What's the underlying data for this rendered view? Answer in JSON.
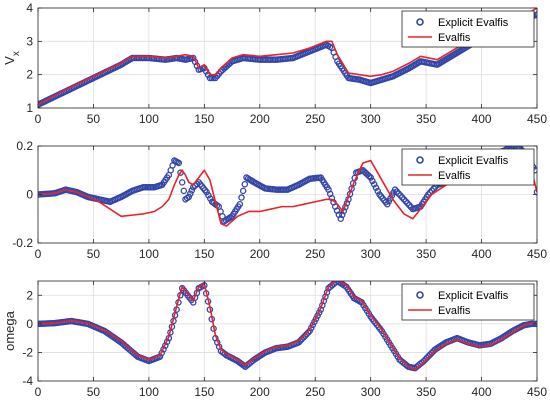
{
  "chart_data": [
    {
      "type": "line",
      "ylabel": "V",
      "ylabel_sub": "x",
      "xlim": [
        0,
        450
      ],
      "ylim": [
        1,
        4
      ],
      "xticks": [
        "0",
        "50",
        "100",
        "150",
        "200",
        "250",
        "300",
        "350",
        "400",
        "450"
      ],
      "yticks": [
        "1",
        "2",
        "3",
        "4"
      ],
      "grid": true,
      "legend_position": "top-right",
      "series": [
        {
          "name": "Explicit Evalfis",
          "style": "circles",
          "color": "#3346a8",
          "x": [
            0,
            25,
            50,
            75,
            85,
            100,
            115,
            125,
            133,
            140,
            145,
            150,
            155,
            160,
            165,
            175,
            185,
            200,
            215,
            230,
            245,
            260,
            265,
            270,
            280,
            290,
            300,
            310,
            320,
            335,
            345,
            360,
            375,
            390,
            410,
            430,
            445,
            450
          ],
          "y": [
            1.1,
            1.5,
            1.9,
            2.3,
            2.5,
            2.5,
            2.45,
            2.5,
            2.45,
            2.5,
            2.15,
            2.2,
            1.9,
            1.9,
            2.1,
            2.4,
            2.5,
            2.45,
            2.45,
            2.5,
            2.7,
            2.9,
            2.8,
            2.4,
            1.9,
            1.85,
            1.75,
            1.85,
            1.95,
            2.2,
            2.4,
            2.3,
            2.6,
            2.9,
            3.2,
            3.5,
            3.75,
            3.8
          ]
        },
        {
          "name": "Evalfis",
          "style": "line",
          "color": "#e8242a",
          "x": [
            0,
            25,
            50,
            75,
            85,
            100,
            115,
            125,
            133,
            140,
            145,
            150,
            155,
            160,
            165,
            175,
            185,
            200,
            215,
            230,
            245,
            260,
            265,
            270,
            280,
            290,
            300,
            310,
            320,
            335,
            345,
            360,
            375,
            390,
            410,
            430,
            445,
            450
          ],
          "y": [
            1.1,
            1.55,
            1.95,
            2.35,
            2.55,
            2.55,
            2.5,
            2.55,
            2.6,
            2.55,
            2.2,
            2.3,
            2.0,
            2.0,
            2.2,
            2.5,
            2.6,
            2.55,
            2.6,
            2.65,
            2.8,
            3.0,
            3.0,
            2.6,
            2.05,
            2.0,
            1.95,
            2.0,
            2.1,
            2.35,
            2.55,
            2.45,
            2.75,
            3.05,
            3.35,
            3.65,
            3.9,
            4.0
          ]
        }
      ]
    },
    {
      "type": "line",
      "ylabel": "",
      "xlim": [
        0,
        450
      ],
      "ylim": [
        -0.2,
        0.2
      ],
      "xticks": [
        "0",
        "50",
        "100",
        "150",
        "200",
        "250",
        "300",
        "350",
        "400",
        "450"
      ],
      "yticks": [
        "-0.2",
        "0",
        "0.2"
      ],
      "grid": true,
      "legend_position": "top-right",
      "series": [
        {
          "name": "Explicit Evalfis",
          "style": "circles",
          "color": "#3346a8",
          "x": [
            0,
            15,
            25,
            35,
            45,
            55,
            65,
            75,
            85,
            95,
            105,
            112,
            118,
            123,
            127,
            130,
            133,
            136,
            140,
            145,
            152,
            157,
            163,
            168,
            175,
            182,
            188,
            195,
            205,
            215,
            225,
            235,
            245,
            255,
            262,
            268,
            273,
            280,
            287,
            293,
            300,
            308,
            315,
            322,
            330,
            338,
            345,
            352,
            360,
            368,
            375,
            382,
            390,
            398,
            405,
            412,
            420,
            428,
            435,
            442,
            448,
            450
          ],
          "y": [
            0.0,
            0.005,
            0.02,
            0.01,
            -0.01,
            -0.02,
            -0.03,
            -0.01,
            0.015,
            0.03,
            0.03,
            0.04,
            0.08,
            0.14,
            0.13,
            0.05,
            -0.02,
            -0.01,
            0.03,
            0.05,
            0.01,
            -0.03,
            -0.05,
            -0.11,
            -0.09,
            -0.04,
            0.07,
            0.05,
            0.025,
            0.02,
            0.02,
            0.04,
            0.065,
            0.07,
            0.02,
            -0.05,
            -0.1,
            -0.02,
            0.09,
            0.1,
            0.07,
            0.0,
            -0.04,
            0.02,
            -0.02,
            -0.06,
            -0.05,
            0.0,
            0.04,
            0.05,
            0.07,
            0.1,
            0.13,
            0.15,
            0.16,
            0.17,
            0.18,
            0.2,
            0.19,
            0.15,
            0.1,
            0.01
          ]
        },
        {
          "name": "Evalfis",
          "style": "line",
          "color": "#e8242a",
          "x": [
            0,
            15,
            25,
            35,
            45,
            55,
            65,
            75,
            85,
            95,
            105,
            112,
            118,
            123,
            127,
            130,
            133,
            136,
            140,
            145,
            150,
            155,
            160,
            165,
            170,
            180,
            190,
            200,
            210,
            220,
            230,
            240,
            250,
            260,
            265,
            270,
            275,
            285,
            293,
            300,
            310,
            320,
            330,
            338,
            345,
            355,
            365,
            375,
            385,
            395,
            405,
            415,
            425,
            435,
            445,
            450
          ],
          "y": [
            0.0,
            0.005,
            0.02,
            0.01,
            -0.01,
            -0.03,
            -0.06,
            -0.09,
            -0.085,
            -0.08,
            -0.07,
            -0.05,
            -0.02,
            0.04,
            0.08,
            0.1,
            0.08,
            0.05,
            0.04,
            0.07,
            0.1,
            0.06,
            -0.03,
            -0.12,
            -0.13,
            -0.09,
            -0.07,
            -0.07,
            -0.06,
            -0.05,
            -0.05,
            -0.04,
            -0.03,
            -0.02,
            -0.02,
            -0.04,
            -0.07,
            0.05,
            0.13,
            0.14,
            0.06,
            -0.02,
            -0.08,
            -0.1,
            -0.06,
            0.0,
            0.03,
            0.06,
            0.07,
            0.1,
            0.13,
            0.16,
            0.17,
            0.15,
            0.1,
            0.01
          ]
        }
      ]
    },
    {
      "type": "line",
      "ylabel": "omega",
      "xlim": [
        0,
        450
      ],
      "ylim": [
        -4,
        3
      ],
      "xticks": [
        "0",
        "50",
        "100",
        "150",
        "200",
        "250",
        "300",
        "350",
        "400",
        "450"
      ],
      "yticks": [
        "-4",
        "-2",
        "0",
        "2"
      ],
      "grid": true,
      "legend_position": "top-right",
      "series": [
        {
          "name": "Explicit Evalfis",
          "style": "circles",
          "color": "#3346a8",
          "x": [
            0,
            15,
            30,
            45,
            60,
            75,
            90,
            100,
            110,
            118,
            125,
            130,
            135,
            140,
            145,
            150,
            155,
            160,
            165,
            170,
            180,
            187,
            195,
            205,
            215,
            225,
            235,
            245,
            255,
            262,
            270,
            278,
            285,
            292,
            300,
            310,
            318,
            326,
            334,
            340,
            348,
            358,
            368,
            378,
            388,
            398,
            408,
            418,
            428,
            438,
            445,
            450
          ],
          "y": [
            0.0,
            0.05,
            0.2,
            0.0,
            -0.5,
            -1.3,
            -2.3,
            -2.6,
            -2.3,
            -1.0,
            1.0,
            2.5,
            2.0,
            1.5,
            2.5,
            2.7,
            1.0,
            -1.0,
            -1.9,
            -2.2,
            -2.6,
            -3.0,
            -2.5,
            -2.0,
            -1.7,
            -1.6,
            -1.3,
            -0.5,
            1.0,
            2.5,
            3.0,
            2.6,
            1.8,
            1.5,
            0.5,
            -0.5,
            -1.5,
            -2.5,
            -3.0,
            -3.1,
            -2.6,
            -1.8,
            -1.3,
            -1.0,
            -1.3,
            -1.5,
            -1.4,
            -1.0,
            -0.5,
            -0.1,
            0.0,
            0.0
          ]
        },
        {
          "name": "Evalfis",
          "style": "line",
          "color": "#e8242a",
          "x": [
            0,
            15,
            30,
            45,
            60,
            75,
            90,
            100,
            110,
            118,
            125,
            130,
            135,
            140,
            145,
            150,
            155,
            160,
            165,
            170,
            180,
            187,
            195,
            205,
            215,
            225,
            235,
            245,
            255,
            262,
            270,
            278,
            285,
            292,
            300,
            310,
            318,
            326,
            334,
            340,
            348,
            358,
            368,
            378,
            388,
            398,
            408,
            418,
            428,
            438,
            445,
            450
          ],
          "y": [
            0.0,
            0.05,
            0.25,
            0.05,
            -0.45,
            -1.2,
            -2.2,
            -2.5,
            -2.2,
            -0.9,
            1.2,
            2.6,
            2.1,
            1.6,
            2.6,
            2.8,
            1.2,
            -0.8,
            -1.8,
            -2.1,
            -2.5,
            -2.9,
            -2.4,
            -1.9,
            -1.6,
            -1.5,
            -1.2,
            -0.4,
            1.1,
            2.6,
            3.1,
            2.7,
            1.9,
            1.6,
            0.6,
            -0.4,
            -1.4,
            -2.4,
            -3.0,
            -3.2,
            -2.7,
            -1.9,
            -1.4,
            -1.1,
            -1.4,
            -1.6,
            -1.5,
            -1.1,
            -0.6,
            -0.1,
            0.05,
            0.0
          ]
        }
      ]
    }
  ]
}
